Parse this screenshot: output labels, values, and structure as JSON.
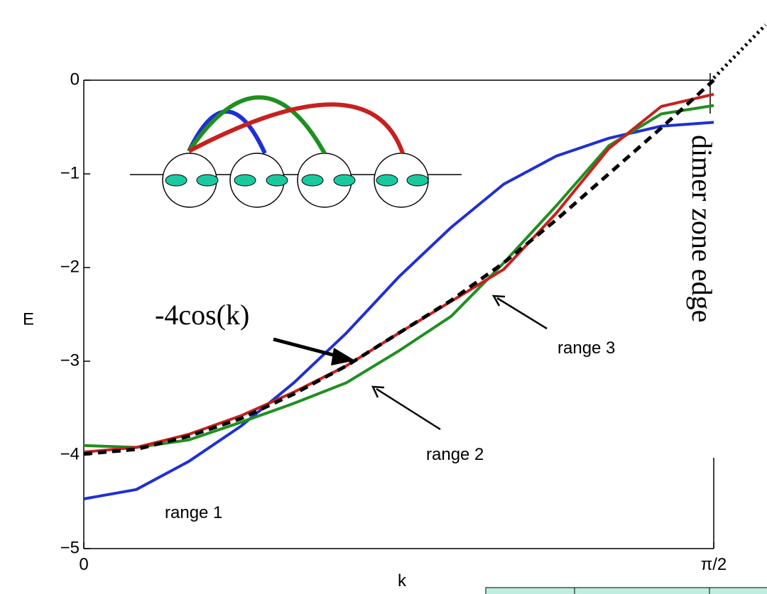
{
  "chart_data": {
    "type": "line",
    "x_label": "k",
    "y_label": "E",
    "annotation": "dimer zone edge",
    "x": [
      0,
      0.1309,
      0.2618,
      0.3927,
      0.5236,
      0.6545,
      0.7854,
      0.9163,
      1.0472,
      1.1781,
      1.309,
      1.4399,
      1.5708
    ],
    "xlim": [
      0,
      1.5708
    ],
    "xticks": [
      0,
      {
        "value": 1.5708,
        "label": "π/2"
      }
    ],
    "ylim": [
      -5,
      0
    ],
    "yticks": [
      {
        "value": -5,
        "label": "−5"
      },
      {
        "value": -4,
        "label": "−4"
      },
      {
        "value": -3,
        "label": "−3"
      },
      {
        "value": -2,
        "label": "−2"
      },
      {
        "value": -1,
        "label": "−1"
      },
      0
    ],
    "series": [
      {
        "name": "range 1",
        "color": "#1f2fd6",
        "values": [
          -4.47,
          -4.37,
          -4.07,
          -3.69,
          -3.23,
          -2.7,
          -2.1,
          -1.57,
          -1.11,
          -0.81,
          -0.62,
          -0.49,
          -0.45
        ]
      },
      {
        "name": "range 2",
        "color": "#1f8f1f",
        "values": [
          -3.9,
          -3.92,
          -3.84,
          -3.65,
          -3.45,
          -3.23,
          -2.89,
          -2.52,
          -1.95,
          -1.34,
          -0.7,
          -0.36,
          -0.27
        ]
      },
      {
        "name": "range 3",
        "color": "#c8201e",
        "values": [
          -3.97,
          -3.92,
          -3.78,
          -3.58,
          -3.33,
          -3.05,
          -2.7,
          -2.36,
          -2.02,
          -1.42,
          -0.73,
          -0.28,
          -0.15
        ]
      },
      {
        "name": "-4cos(k)",
        "color": "#000000",
        "dashed": true,
        "values": [
          -3.99,
          -3.94,
          -3.8,
          -3.61,
          -3.35,
          -3.05,
          -2.7,
          -2.35,
          -1.95,
          -1.49,
          -1.0,
          -0.51,
          0
        ]
      }
    ]
  }
}
